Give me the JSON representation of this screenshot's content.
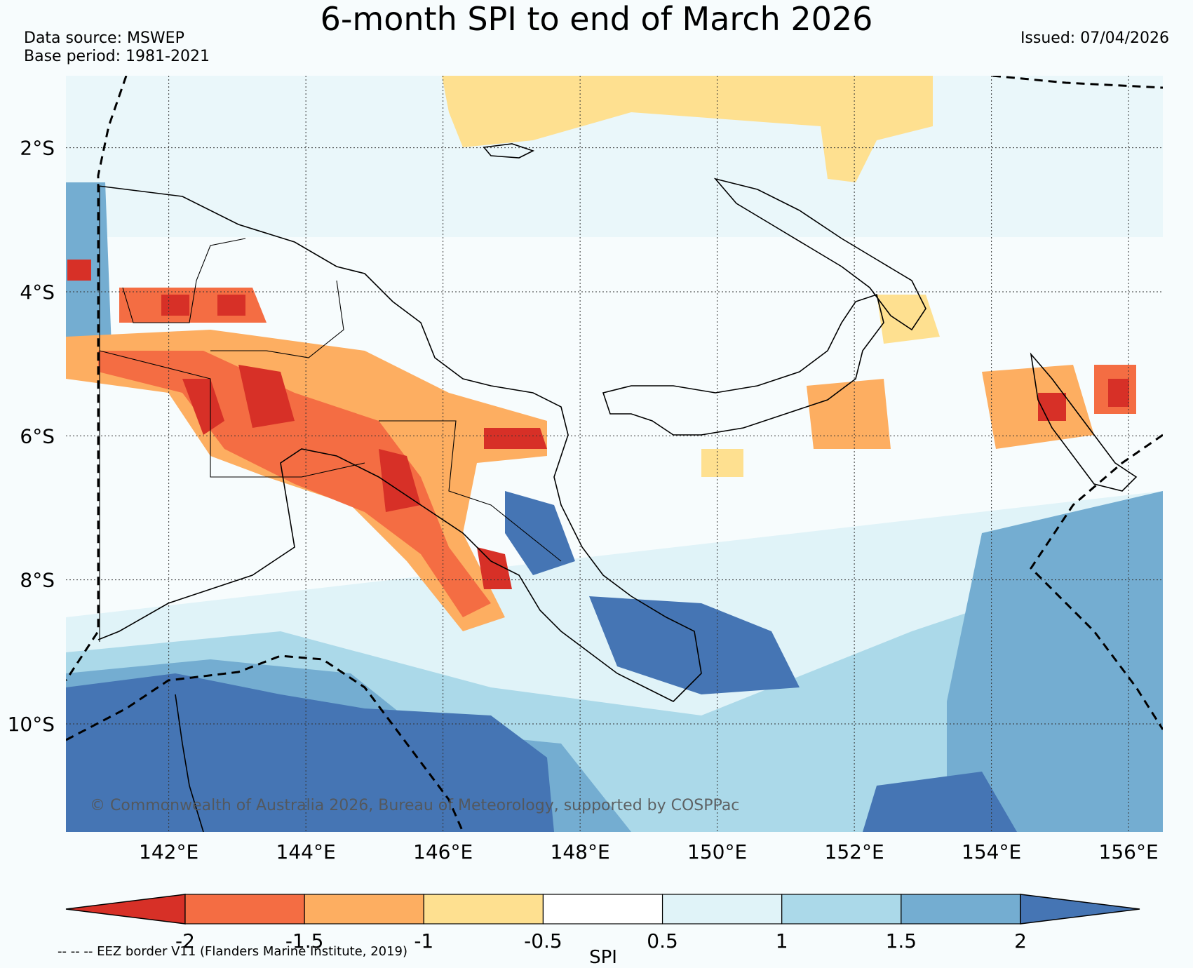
{
  "header": {
    "title": "6-month SPI to end of March 2026",
    "source_line": "Data source: MSWEP",
    "base_line": "Base period: 1981-2021",
    "issued": "Issued: 07/04/2026"
  },
  "map": {
    "lon_range": [
      140.5,
      156.5
    ],
    "lat_range": [
      -11.5,
      -1.0
    ],
    "lon_ticks": [
      142,
      144,
      146,
      148,
      150,
      152,
      154,
      156
    ],
    "lon_labels": [
      "142°E",
      "144°E",
      "146°E",
      "148°E",
      "150°E",
      "152°E",
      "154°E",
      "156°E"
    ],
    "lat_ticks": [
      -2,
      -4,
      -6,
      -8,
      -10
    ],
    "lat_labels": [
      "2°S",
      "4°S",
      "6°S",
      "8°S",
      "10°S"
    ],
    "gridlines": true
  },
  "credit": "© Commonwealth of Australia 2026, Bureau of Meteorology, supported by COSPPac",
  "colorbar": {
    "ticks": [
      "-2",
      "-1.5",
      "-1",
      "-0.5",
      "0.5",
      "1",
      "1.5",
      "2"
    ],
    "label": "SPI",
    "colors": [
      "#d73027",
      "#f46d43",
      "#fdae61",
      "#fee090",
      "#ffffff",
      "#e0f3f8",
      "#abd9e9",
      "#74add1",
      "#4575b4"
    ]
  },
  "eez_note": "-- -- -- EEZ border V11 (Flanders Marine Institute, 2019)"
}
